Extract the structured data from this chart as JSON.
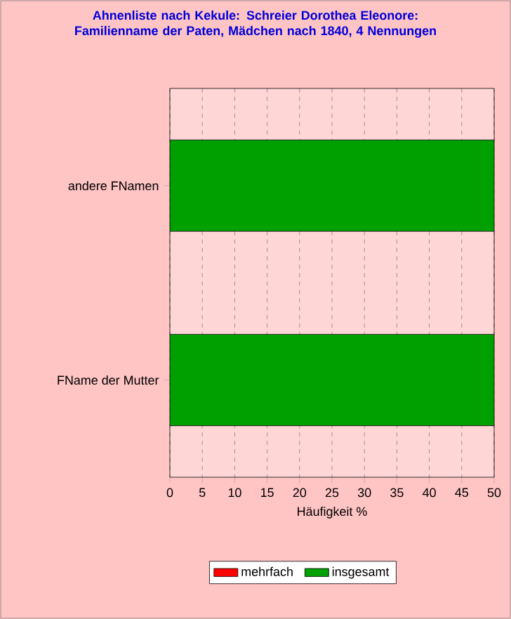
{
  "chart_data": {
    "type": "bar",
    "orientation": "horizontal",
    "title": "Ahnenliste nach Kekule: Schreier Dorothea Eleonore: Familienname der Paten, Mädchen nach 1840, 4 Nennungen",
    "xlabel": "Häufigkeit %",
    "categories": [
      "andere FNamen",
      "FName der Mutter"
    ],
    "series": [
      {
        "name": "mehrfach",
        "color": "#ff0000",
        "values": [
          null,
          null
        ]
      },
      {
        "name": "insgesamt",
        "color": "#00a000",
        "values": [
          50,
          50
        ]
      }
    ],
    "xlim": [
      0,
      50
    ],
    "xticks": [
      0,
      5,
      10,
      15,
      20,
      25,
      30,
      35,
      40,
      45,
      50
    ],
    "grid": "x",
    "legend": "bottom"
  }
}
